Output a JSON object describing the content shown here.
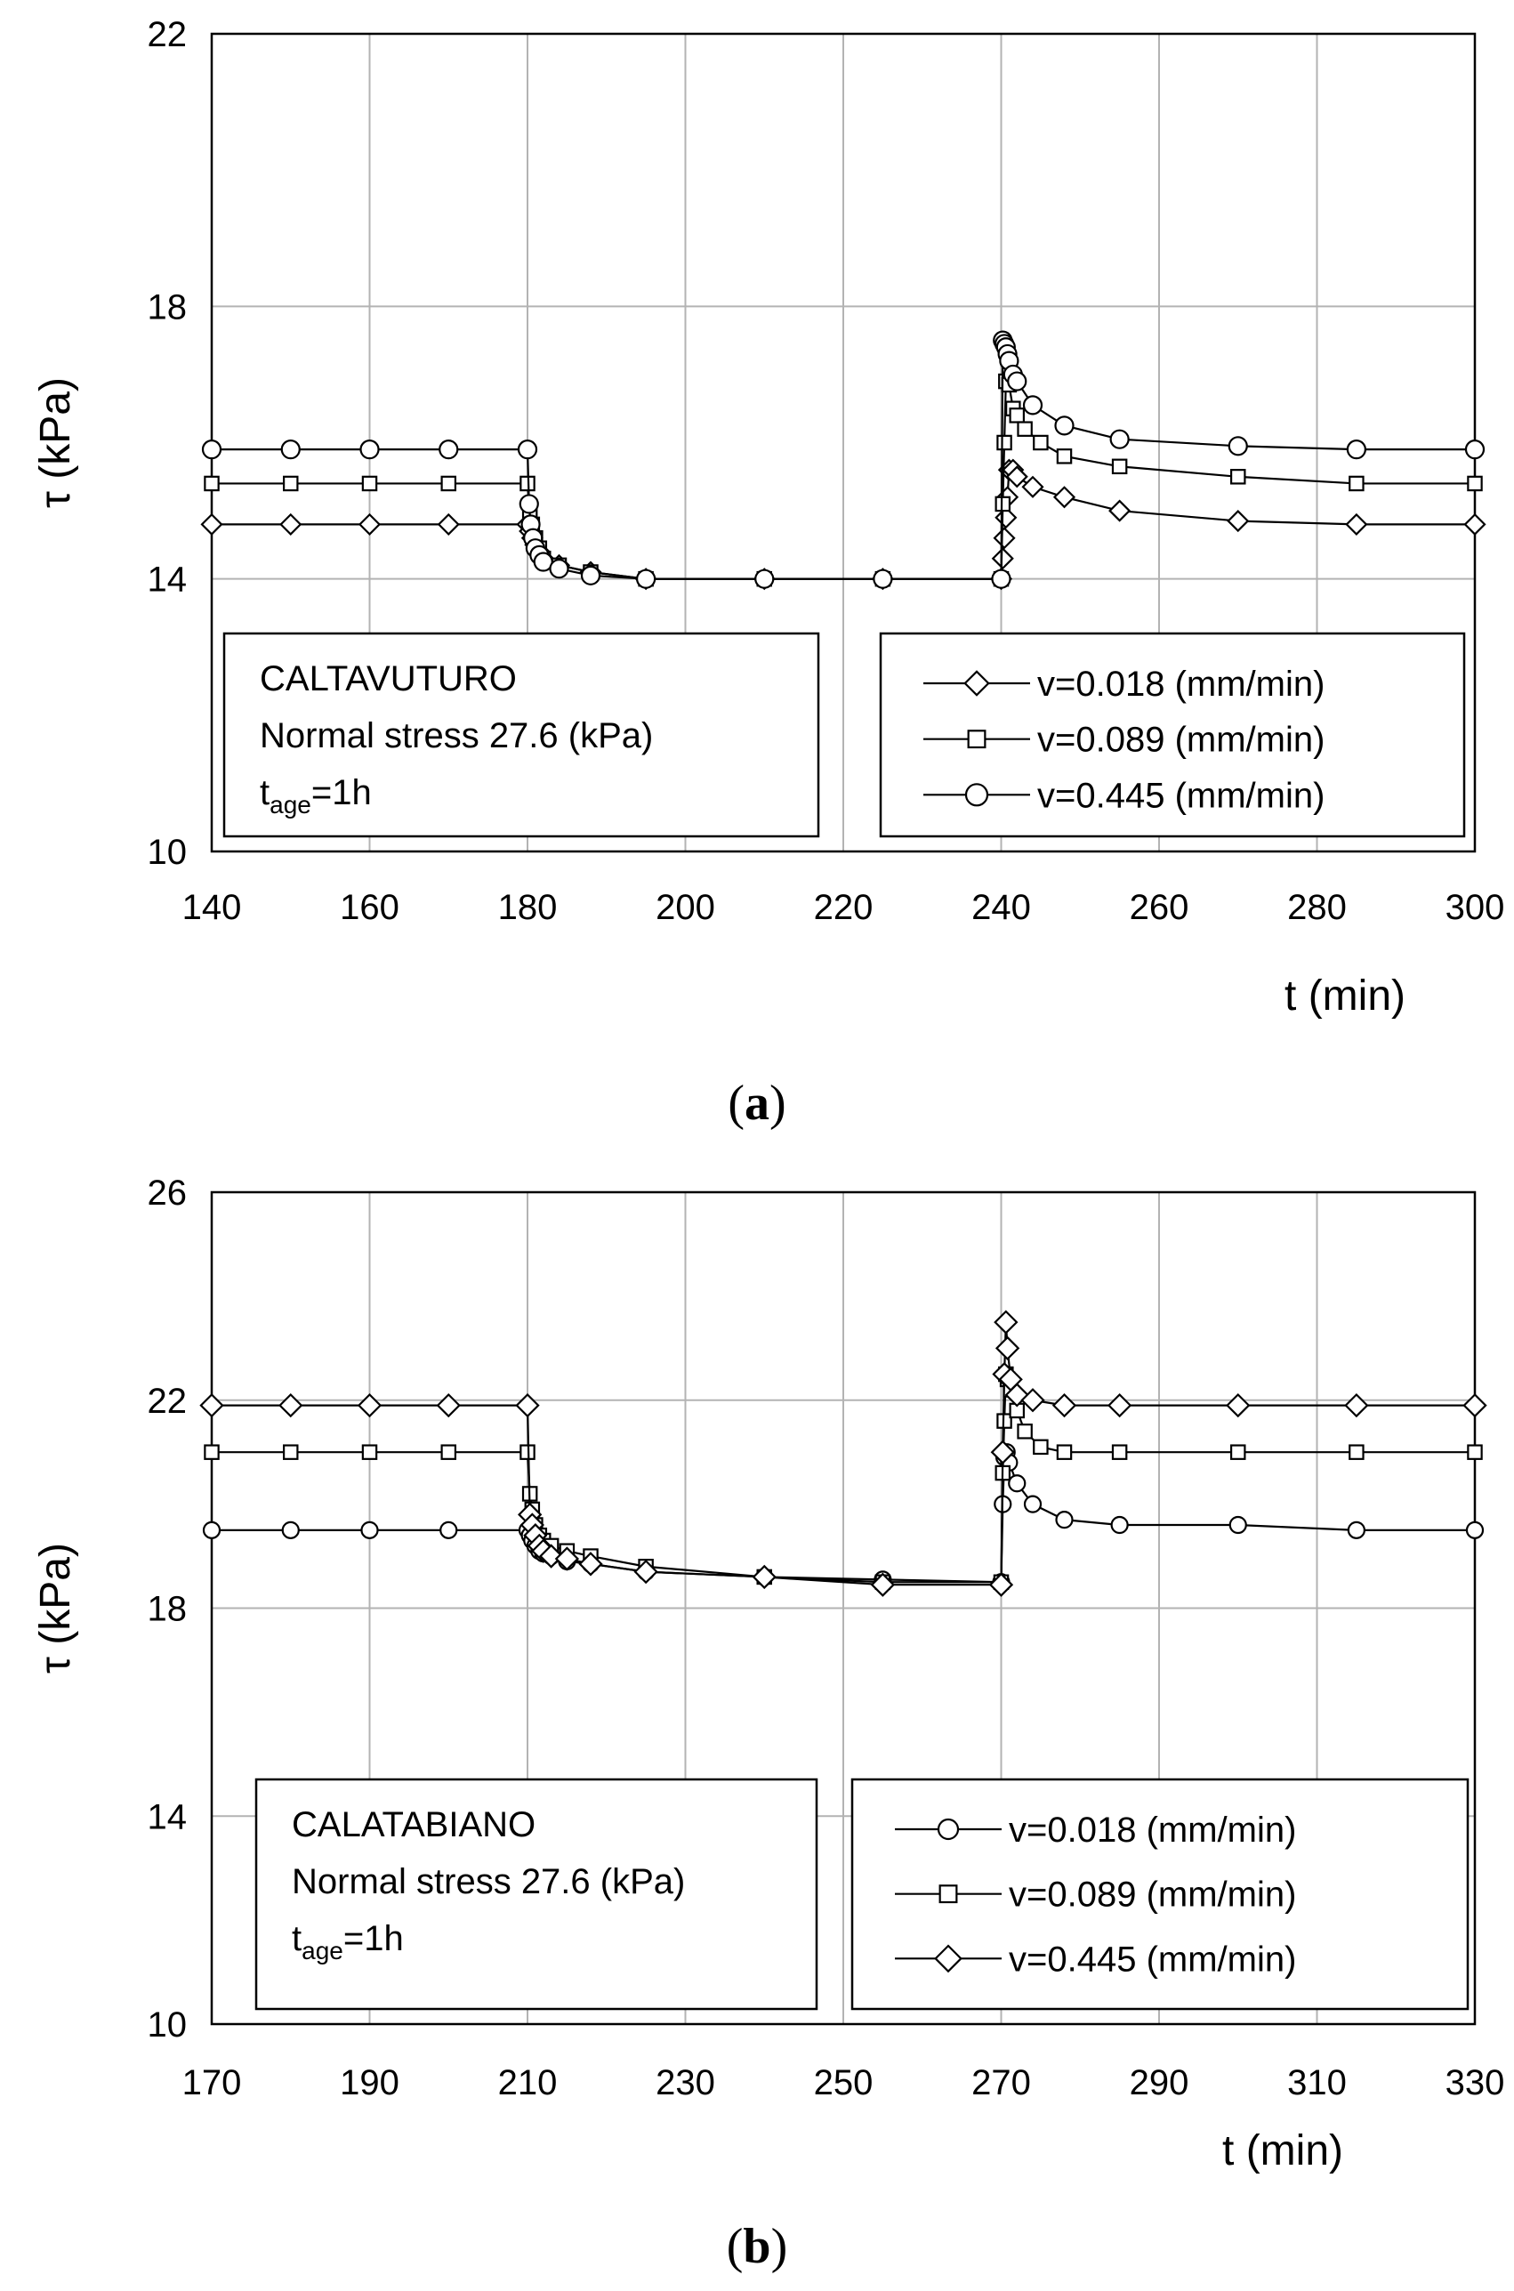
{
  "chart_data": [
    {
      "type": "line",
      "panel_label": "a",
      "xlabel": "t (min)",
      "ylabel": "τ (kPa)",
      "xlim": [
        140,
        300
      ],
      "ylim": [
        10,
        22
      ],
      "xticks": [
        "140",
        "160",
        "180",
        "200",
        "220",
        "240",
        "260",
        "280",
        "300"
      ],
      "yticks": [
        "10",
        "14",
        "18",
        "22"
      ],
      "grid": true,
      "info_box": {
        "site": "CALTAVUTURO",
        "stress": "Normal stress 27.6 (kPa)",
        "age_main": "t",
        "age_sub": "age",
        "age_value": "=1h"
      },
      "legend_position": "bottom-right",
      "series": [
        {
          "name": "v=0.018 (mm/min)",
          "marker": "diamond",
          "x": [
            140,
            150,
            160,
            170,
            180,
            180.3,
            180.6,
            181,
            181.5,
            182,
            184,
            188,
            195,
            210,
            225,
            240,
            240.2,
            240.4,
            240.6,
            240.8,
            241,
            241.5,
            242,
            244,
            248,
            255,
            270,
            285,
            300
          ],
          "y": [
            14.8,
            14.8,
            14.8,
            14.8,
            14.8,
            14.7,
            14.6,
            14.5,
            14.4,
            14.3,
            14.2,
            14.1,
            14.0,
            14.0,
            14.0,
            14.0,
            14.3,
            14.6,
            14.9,
            15.2,
            15.6,
            15.6,
            15.5,
            15.35,
            15.2,
            15.0,
            14.85,
            14.8,
            14.8
          ]
        },
        {
          "name": "v=0.089 (mm/min)",
          "marker": "square",
          "x": [
            140,
            150,
            160,
            170,
            180,
            180.3,
            180.6,
            181,
            181.5,
            182,
            184,
            188,
            195,
            210,
            225,
            240,
            240.2,
            240.4,
            240.6,
            241,
            241.5,
            242,
            243,
            245,
            248,
            255,
            270,
            285,
            300
          ],
          "y": [
            15.4,
            15.4,
            15.4,
            15.4,
            15.4,
            15.0,
            14.8,
            14.6,
            14.45,
            14.3,
            14.2,
            14.1,
            14.0,
            14.0,
            14.0,
            14.0,
            15.1,
            16.0,
            16.9,
            16.85,
            16.5,
            16.4,
            16.2,
            16.0,
            15.8,
            15.65,
            15.5,
            15.4,
            15.4
          ]
        },
        {
          "name": "v=0.445 (mm/min)",
          "marker": "circle",
          "x": [
            140,
            150,
            160,
            170,
            180,
            180.2,
            180.4,
            180.7,
            181,
            181.5,
            182,
            184,
            188,
            195,
            210,
            225,
            240,
            240.2,
            240.4,
            240.6,
            240.8,
            241,
            241.5,
            242,
            244,
            248,
            255,
            270,
            285,
            300
          ],
          "y": [
            15.9,
            15.9,
            15.9,
            15.9,
            15.9,
            15.1,
            14.8,
            14.6,
            14.45,
            14.35,
            14.25,
            14.15,
            14.05,
            14.0,
            14.0,
            14.0,
            14.0,
            17.5,
            17.45,
            17.4,
            17.3,
            17.2,
            17.0,
            16.9,
            16.55,
            16.25,
            16.05,
            15.95,
            15.9,
            15.9
          ]
        }
      ]
    },
    {
      "type": "line",
      "panel_label": "b",
      "xlabel": "t (min)",
      "ylabel": "τ (kPa)",
      "xlim": [
        170,
        330
      ],
      "ylim": [
        10,
        26
      ],
      "xticks": [
        "170",
        "190",
        "210",
        "230",
        "250",
        "270",
        "290",
        "310",
        "330"
      ],
      "yticks": [
        "10",
        "14",
        "18",
        "22",
        "26"
      ],
      "grid": true,
      "info_box": {
        "site": "CALATABIANO",
        "stress": "Normal stress 27.6 (kPa)",
        "age_main": "t",
        "age_sub": "age",
        "age_value": "=1h"
      },
      "legend_position": "bottom-right",
      "series": [
        {
          "name": "v=0.018 (mm/min)",
          "marker": "circle",
          "x": [
            170,
            180,
            190,
            200,
            210,
            210.3,
            210.6,
            211,
            211.5,
            212,
            213,
            215,
            218,
            225,
            240,
            255,
            270,
            270.2,
            270.4,
            270.7,
            271,
            272,
            274,
            278,
            285,
            300,
            315,
            330
          ],
          "y": [
            19.5,
            19.5,
            19.5,
            19.5,
            19.5,
            19.4,
            19.3,
            19.2,
            19.1,
            19.05,
            19.0,
            18.9,
            18.85,
            18.7,
            18.6,
            18.55,
            18.5,
            20.0,
            20.9,
            21.0,
            20.8,
            20.4,
            20.0,
            19.7,
            19.6,
            19.6,
            19.5,
            19.5
          ]
        },
        {
          "name": "v=0.089 (mm/min)",
          "marker": "square",
          "x": [
            170,
            180,
            190,
            200,
            210,
            210.3,
            210.6,
            211,
            211.5,
            212,
            213,
            215,
            218,
            225,
            240,
            255,
            270,
            270.2,
            270.4,
            270.6,
            270.8,
            271.2,
            272,
            273,
            275,
            278,
            285,
            300,
            315,
            330
          ],
          "y": [
            21.0,
            21.0,
            21.0,
            21.0,
            21.0,
            20.2,
            19.9,
            19.6,
            19.4,
            19.3,
            19.2,
            19.1,
            19.0,
            18.8,
            18.6,
            18.5,
            18.5,
            20.6,
            21.6,
            22.5,
            22.4,
            22.2,
            21.8,
            21.4,
            21.1,
            21.0,
            21.0,
            21.0,
            21.0,
            21.0
          ]
        },
        {
          "name": "v=0.445 (mm/min)",
          "marker": "diamond",
          "x": [
            170,
            180,
            190,
            200,
            210,
            210.3,
            210.6,
            211,
            211.5,
            212,
            213,
            215,
            218,
            225,
            240,
            255,
            270,
            270.2,
            270.4,
            270.6,
            270.8,
            271.2,
            272,
            274,
            278,
            285,
            300,
            315,
            330
          ],
          "y": [
            21.9,
            21.9,
            21.9,
            21.9,
            21.9,
            19.8,
            19.6,
            19.4,
            19.2,
            19.1,
            19.0,
            18.95,
            18.85,
            18.7,
            18.6,
            18.45,
            18.45,
            21.0,
            22.5,
            23.5,
            23.0,
            22.4,
            22.1,
            22.0,
            21.9,
            21.9,
            21.9,
            21.9,
            21.9
          ]
        }
      ]
    }
  ]
}
